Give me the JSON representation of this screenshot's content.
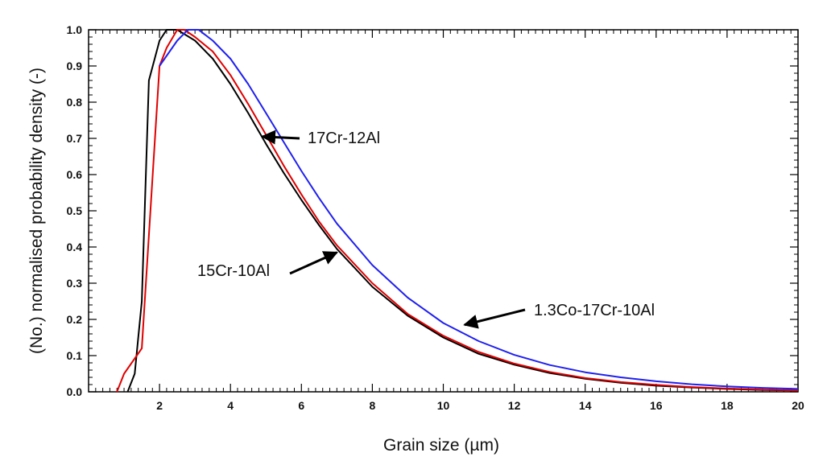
{
  "chart_data": {
    "type": "line",
    "xlabel": "Grain size (µm)",
    "ylabel": "(No.) normalised probability density (-)",
    "xlim": [
      0,
      20
    ],
    "ylim": [
      0,
      1.0
    ],
    "x_ticks": [
      2,
      4,
      6,
      8,
      10,
      12,
      14,
      16,
      18,
      20
    ],
    "y_ticks": [
      0.0,
      0.1,
      0.2,
      0.3,
      0.4,
      0.5,
      0.6,
      0.7,
      0.8,
      0.9,
      1.0
    ],
    "series": [
      {
        "key": "black",
        "color": "#000000",
        "points": [
          [
            1.1,
            0.0
          ],
          [
            1.3,
            0.05
          ],
          [
            1.5,
            0.25
          ],
          [
            1.7,
            0.86
          ],
          [
            2.0,
            0.97
          ],
          [
            2.2,
            1.0
          ],
          [
            2.5,
            1.0
          ],
          [
            3.0,
            0.97
          ],
          [
            3.5,
            0.92
          ],
          [
            4.0,
            0.85
          ],
          [
            4.5,
            0.77
          ],
          [
            5.0,
            0.685
          ],
          [
            5.5,
            0.605
          ],
          [
            6.0,
            0.53
          ],
          [
            6.5,
            0.46
          ],
          [
            7.0,
            0.395
          ],
          [
            8.0,
            0.29
          ],
          [
            9.0,
            0.21
          ],
          [
            10.0,
            0.15
          ],
          [
            11.0,
            0.105
          ],
          [
            12.0,
            0.075
          ],
          [
            13.0,
            0.052
          ],
          [
            14.0,
            0.036
          ],
          [
            15.0,
            0.025
          ],
          [
            16.0,
            0.017
          ],
          [
            17.0,
            0.012
          ],
          [
            18.0,
            0.008
          ],
          [
            19.0,
            0.005
          ],
          [
            20.0,
            0.004
          ]
        ]
      },
      {
        "key": "red",
        "color": "#e00000",
        "points": [
          [
            0.8,
            0.0
          ],
          [
            1.0,
            0.05
          ],
          [
            1.5,
            0.12
          ],
          [
            2.0,
            0.9
          ],
          [
            2.2,
            0.95
          ],
          [
            2.5,
            1.0
          ],
          [
            2.7,
            1.0
          ],
          [
            3.0,
            0.98
          ],
          [
            3.5,
            0.94
          ],
          [
            4.0,
            0.875
          ],
          [
            4.5,
            0.795
          ],
          [
            5.0,
            0.71
          ],
          [
            5.5,
            0.625
          ],
          [
            6.0,
            0.545
          ],
          [
            6.5,
            0.47
          ],
          [
            7.0,
            0.405
          ],
          [
            8.0,
            0.3
          ],
          [
            9.0,
            0.215
          ],
          [
            10.0,
            0.155
          ],
          [
            11.0,
            0.11
          ],
          [
            12.0,
            0.078
          ],
          [
            13.0,
            0.055
          ],
          [
            14.0,
            0.038
          ],
          [
            15.0,
            0.027
          ],
          [
            16.0,
            0.019
          ],
          [
            17.0,
            0.013
          ],
          [
            18.0,
            0.009
          ],
          [
            19.0,
            0.006
          ],
          [
            20.0,
            0.004
          ]
        ]
      },
      {
        "key": "blue",
        "color": "#2020f0",
        "points": [
          [
            2.0,
            0.9
          ],
          [
            2.5,
            0.97
          ],
          [
            2.8,
            1.0
          ],
          [
            3.1,
            1.0
          ],
          [
            3.5,
            0.97
          ],
          [
            4.0,
            0.92
          ],
          [
            4.5,
            0.85
          ],
          [
            5.0,
            0.77
          ],
          [
            5.5,
            0.69
          ],
          [
            6.0,
            0.61
          ],
          [
            6.5,
            0.535
          ],
          [
            7.0,
            0.465
          ],
          [
            8.0,
            0.35
          ],
          [
            9.0,
            0.26
          ],
          [
            10.0,
            0.19
          ],
          [
            11.0,
            0.14
          ],
          [
            12.0,
            0.102
          ],
          [
            13.0,
            0.074
          ],
          [
            14.0,
            0.054
          ],
          [
            15.0,
            0.04
          ],
          [
            16.0,
            0.029
          ],
          [
            17.0,
            0.021
          ],
          [
            18.0,
            0.015
          ],
          [
            19.0,
            0.011
          ],
          [
            20.0,
            0.008
          ]
        ]
      }
    ],
    "annotations": [
      {
        "key": "17cr-12al",
        "text": "17Cr-12Al",
        "target": [
          4.9,
          0.705
        ]
      },
      {
        "key": "15cr-10al",
        "text": "15Cr-10Al",
        "target": [
          7.0,
          0.385
        ]
      },
      {
        "key": "1-3co-17cr-10al",
        "text": "1.3Co-17Cr-10Al",
        "target": [
          10.6,
          0.185
        ]
      }
    ],
    "grid": false,
    "legend": "none"
  }
}
